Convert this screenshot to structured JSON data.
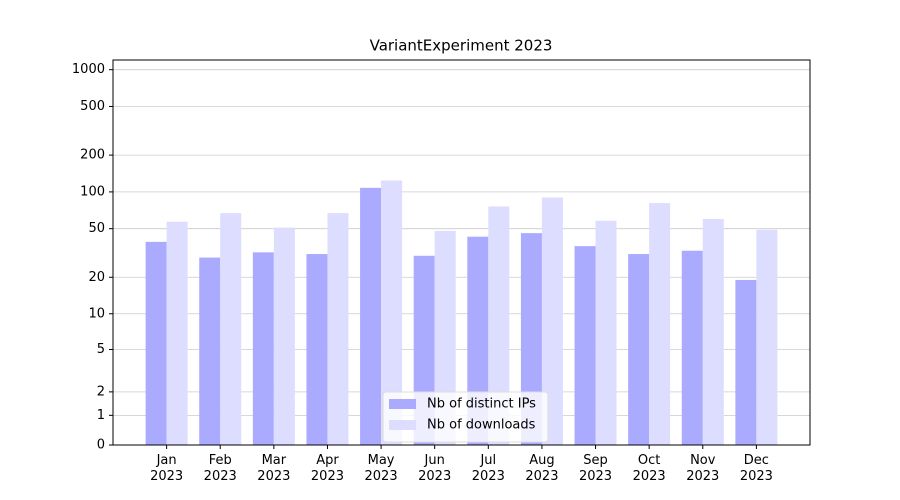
{
  "chart_data": {
    "type": "bar",
    "title": "VariantExperiment 2023",
    "categories": [
      "Jan\n2023",
      "Feb\n2023",
      "Mar\n2023",
      "Apr\n2023",
      "May\n2023",
      "Jun\n2023",
      "Jul\n2023",
      "Aug\n2023",
      "Sep\n2023",
      "Oct\n2023",
      "Nov\n2023",
      "Dec\n2023"
    ],
    "series": [
      {
        "name": "Nb of distinct IPs",
        "color": "#aaaaff",
        "values": [
          39,
          29,
          32,
          31,
          108,
          30,
          43,
          46,
          36,
          31,
          33,
          19
        ]
      },
      {
        "name": "Nb of downloads",
        "color": "#ddddff",
        "values": [
          57,
          67,
          51,
          67,
          124,
          48,
          76,
          90,
          58,
          81,
          60,
          49
        ]
      }
    ],
    "yscale": "symlog",
    "ylim": [
      0,
      1200
    ],
    "yticks": [
      0,
      1,
      2,
      5,
      10,
      20,
      50,
      100,
      200,
      500,
      1000
    ],
    "grid": true,
    "legend": "lower center"
  }
}
